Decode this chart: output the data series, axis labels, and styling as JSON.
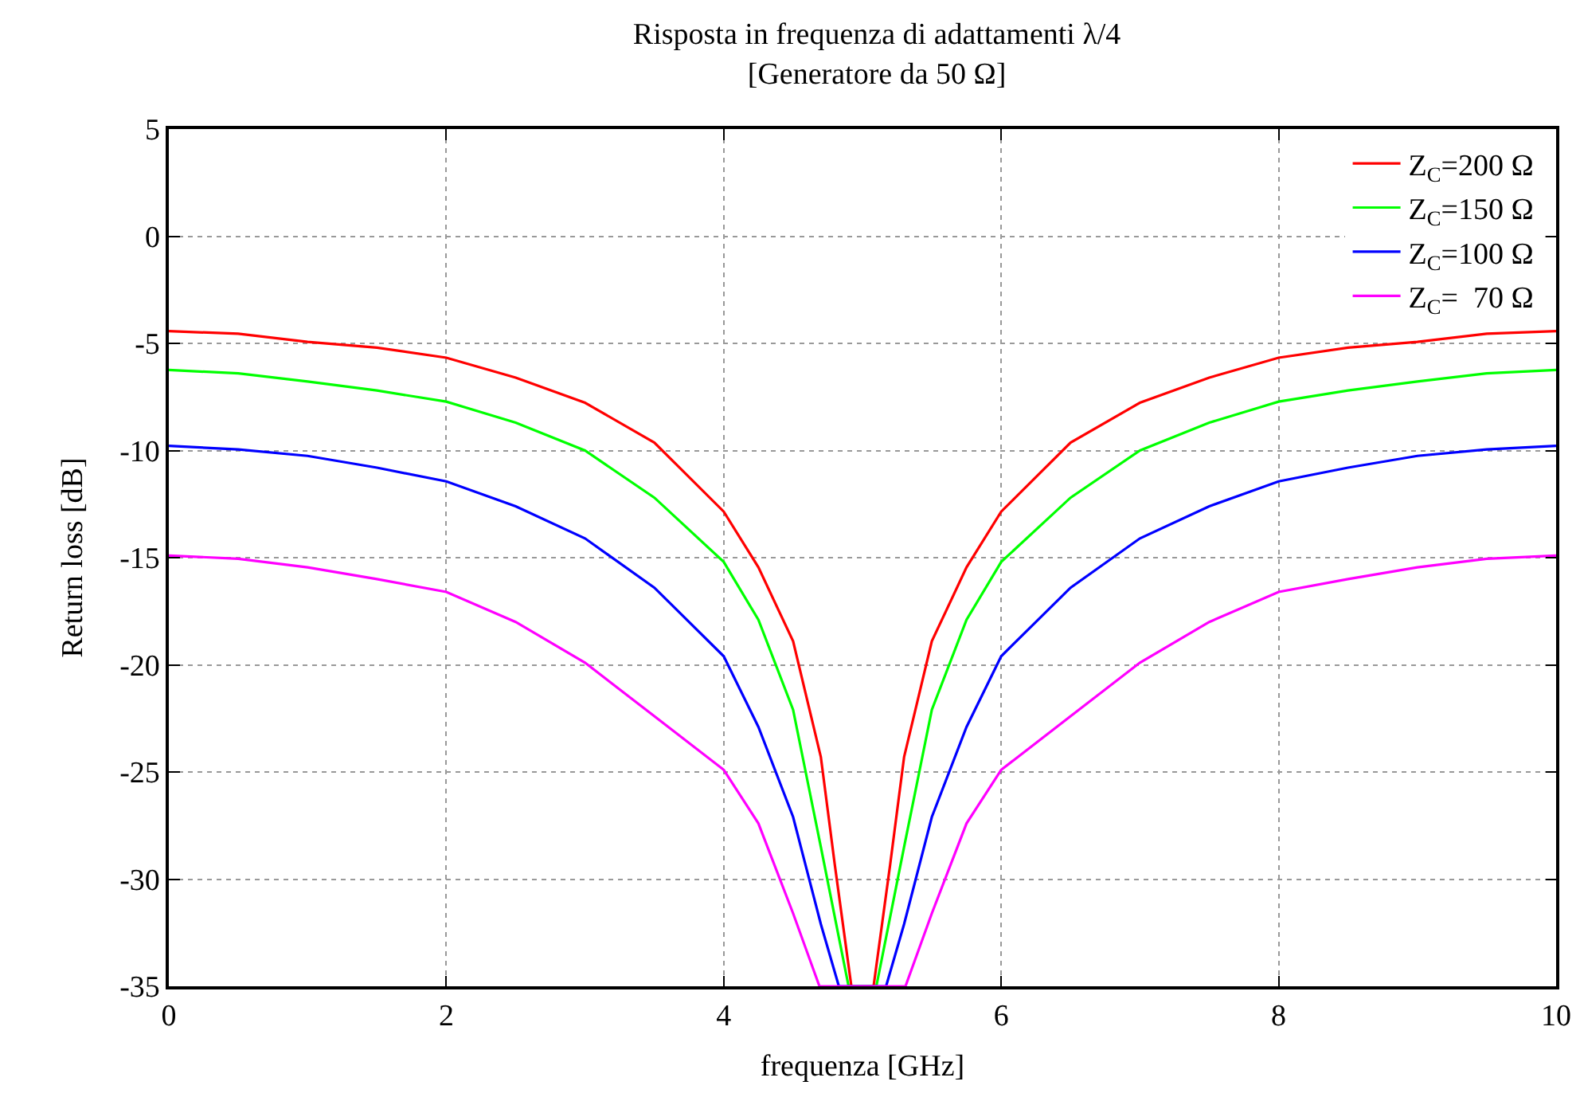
{
  "chart_data": {
    "type": "line",
    "title": "Risposta in frequenza di adattamenti λ/4\n[Generatore da 50 Ω]",
    "xlabel": "frequenza [GHz]",
    "ylabel": "Return loss [dB]",
    "xlim": [
      0,
      10
    ],
    "xticks": [
      0,
      2,
      4,
      6,
      8,
      10
    ],
    "ylim": [
      -35,
      5
    ],
    "yticks": [
      -35,
      -30,
      -25,
      -20,
      -15,
      -10,
      -5,
      0,
      5
    ],
    "grid": true,
    "legend": "top right",
    "marker": "none",
    "line_style": "solid",
    "series": [
      {
        "name": "Z$_{C}$=200 Ω",
        "color": "#ff0000",
        "x": [
          0,
          0.5,
          1,
          1.5,
          2,
          2.5,
          3,
          3.5,
          4,
          4.25,
          4.5,
          4.7,
          4.8,
          4.92,
          5.08,
          5.2,
          5.3,
          5.5,
          5.75,
          6,
          6.5,
          7,
          7.5,
          8,
          8.5,
          9,
          9.5,
          10
        ],
        "values": [
          -4.43,
          -4.55,
          -4.93,
          -5.2,
          -5.67,
          -6.6,
          -7.77,
          -9.63,
          -12.85,
          -15.45,
          -18.9,
          -24.3,
          -29.3,
          -35,
          -35,
          -29.3,
          -24.3,
          -18.9,
          -15.45,
          -12.85,
          -9.63,
          -7.77,
          -6.6,
          -5.67,
          -5.2,
          -4.93,
          -4.55,
          -4.43
        ]
      },
      {
        "name": "Z$_{C}$=150 Ω",
        "color": "#00ff00",
        "x": [
          0,
          0.5,
          1,
          1.5,
          2,
          2.5,
          3,
          3.5,
          4,
          4.25,
          4.5,
          4.7,
          4.9,
          5.1,
          5.3,
          5.5,
          5.75,
          6,
          6.5,
          7,
          7.5,
          8,
          8.5,
          9,
          9.5,
          10
        ],
        "values": [
          -6.24,
          -6.4,
          -6.78,
          -7.2,
          -7.72,
          -8.7,
          -10.0,
          -12.2,
          -15.2,
          -17.9,
          -22.1,
          -28.5,
          -35,
          -35,
          -28.5,
          -22.1,
          -17.9,
          -15.2,
          -12.2,
          -10.0,
          -8.7,
          -7.72,
          -7.2,
          -6.78,
          -6.4,
          -6.24
        ]
      },
      {
        "name": "Z$_{C}$=100 Ω",
        "color": "#0000ff",
        "x": [
          0,
          0.5,
          1,
          1.5,
          2,
          2.5,
          3,
          3.5,
          4,
          4.25,
          4.5,
          4.7,
          4.83,
          5.17,
          5.3,
          5.5,
          5.75,
          6,
          6.5,
          7,
          7.5,
          8,
          8.5,
          9,
          9.5,
          10
        ],
        "values": [
          -9.78,
          -9.95,
          -10.25,
          -10.8,
          -11.44,
          -12.6,
          -14.1,
          -16.4,
          -19.6,
          -22.9,
          -27.1,
          -32.1,
          -35,
          -35,
          -32.1,
          -27.1,
          -22.9,
          -19.6,
          -16.4,
          -14.1,
          -12.6,
          -11.44,
          -10.8,
          -10.25,
          -9.95,
          -9.78
        ]
      },
      {
        "name": "Z$_{C}$=  70 Ω",
        "color": "#ff00ff",
        "x": [
          0,
          0.5,
          1,
          1.5,
          2,
          2.5,
          3,
          3.5,
          4,
          4.25,
          4.5,
          4.69,
          5.31,
          5.5,
          5.75,
          6,
          6.5,
          7,
          7.5,
          8,
          8.5,
          9,
          9.5,
          10
        ],
        "values": [
          -14.9,
          -15.05,
          -15.45,
          -16.0,
          -16.6,
          -18.0,
          -19.9,
          -22.4,
          -24.9,
          -27.4,
          -31.6,
          -35,
          -35,
          -31.6,
          -27.4,
          -24.9,
          -22.4,
          -19.9,
          -18.0,
          -16.6,
          -16.0,
          -15.45,
          -15.05,
          -14.9
        ]
      }
    ]
  }
}
